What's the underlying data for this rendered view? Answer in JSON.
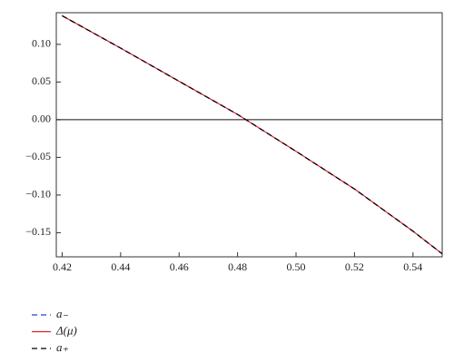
{
  "chart_data": {
    "type": "line",
    "x": [
      0.42,
      0.44,
      0.46,
      0.48,
      0.5,
      0.52,
      0.54,
      0.55
    ],
    "series": [
      {
        "name": "a₋",
        "color": "#2a3fd0",
        "dash": "dashed",
        "values": [
          0.138,
          0.095,
          0.051,
          0.007,
          -0.042,
          -0.092,
          -0.148,
          -0.178
        ]
      },
      {
        "name": "Δ(μ)",
        "color": "#e0202a",
        "dash": "solid",
        "values": [
          0.138,
          0.095,
          0.051,
          0.007,
          -0.042,
          -0.092,
          -0.148,
          -0.178
        ]
      },
      {
        "name": "a₊",
        "color": "#000000",
        "dash": "dashed",
        "values": [
          0.138,
          0.095,
          0.051,
          0.007,
          -0.042,
          -0.092,
          -0.148,
          -0.178
        ]
      }
    ],
    "xlim": [
      0.418,
      0.55
    ],
    "ylim": [
      -0.182,
      0.142
    ],
    "xticks": [
      0.42,
      0.44,
      0.46,
      0.48,
      {
        "value": 0.5,
        "label": "0.50"
      },
      0.52,
      0.54
    ],
    "yticks": [
      {
        "value": 0.1,
        "label": "0.10"
      },
      0.05,
      {
        "value": 0,
        "label": "0.00"
      },
      {
        "value": -0.05,
        "label": "−0.05"
      },
      {
        "value": -0.1,
        "label": "−0.10"
      },
      {
        "value": -0.15,
        "label": "−0.15"
      }
    ],
    "reference_line": 0,
    "legend": "bottom-left"
  }
}
